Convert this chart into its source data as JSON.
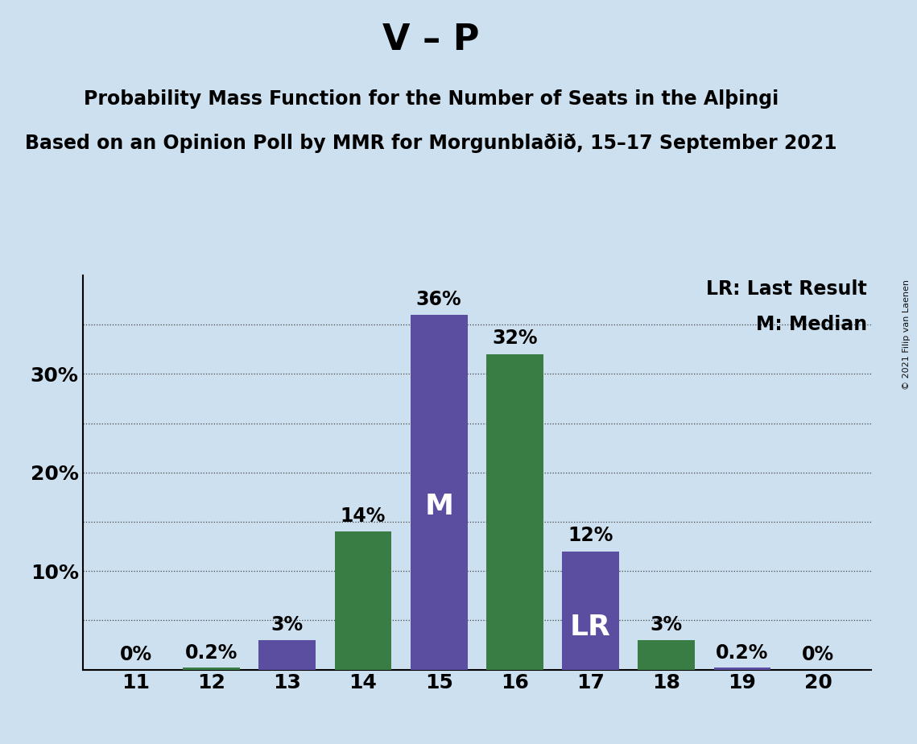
{
  "title_main": "V – P",
  "title_sub1": "Probability Mass Function for the Number of Seats in the Alþingi",
  "title_sub2": "Based on an Opinion Poll by MMR for Morgunblaðið, 15–17 September 2021",
  "copyright": "© 2021 Filip van Laenen",
  "seats": [
    11,
    12,
    13,
    14,
    15,
    16,
    17,
    18,
    19,
    20
  ],
  "values": [
    0.0,
    0.2,
    3.0,
    14.0,
    36.0,
    32.0,
    12.0,
    3.0,
    0.2,
    0.0
  ],
  "bar_colors": [
    "#5b4ea0",
    "#3a7d44",
    "#5b4ea0",
    "#3a7d44",
    "#5b4ea0",
    "#3a7d44",
    "#5b4ea0",
    "#3a7d44",
    "#5b4ea0",
    "#3a7d44"
  ],
  "median_seat": 15,
  "last_result_seat": 17,
  "label_texts": [
    "0%",
    "0.2%",
    "3%",
    "14%",
    "36%",
    "32%",
    "12%",
    "3%",
    "0.2%",
    "0%"
  ],
  "ylim": [
    0,
    40
  ],
  "ytick_vals": [
    10,
    20,
    30
  ],
  "ytick_labels": [
    "10%",
    "20%",
    "30%"
  ],
  "grid_yticks": [
    5,
    10,
    15,
    20,
    25,
    30,
    35
  ],
  "background_color": "#cce0f0",
  "bar_width": 0.75,
  "title_fontsize": 32,
  "subtitle_fontsize": 17,
  "label_fontsize": 17,
  "tick_fontsize": 18,
  "annotation_fontsize": 26,
  "legend_fontsize": 17
}
